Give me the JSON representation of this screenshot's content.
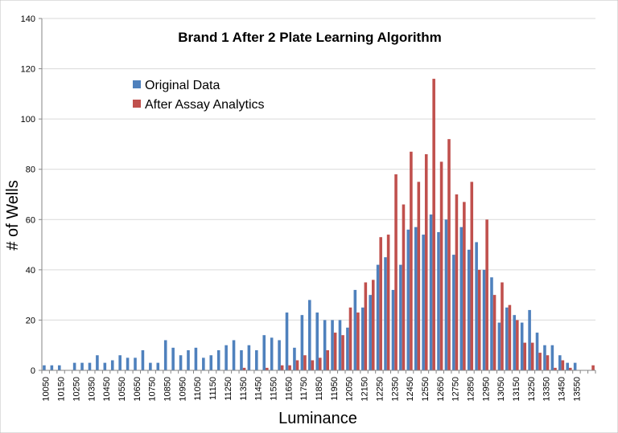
{
  "chart_data": {
    "type": "bar",
    "title": "Brand 1 After 2 Plate Learning Algorithm",
    "xlabel": "Luminance",
    "ylabel": "# of Wells",
    "ylim": [
      0,
      140
    ],
    "yticks": [
      0,
      20,
      40,
      60,
      80,
      100,
      120,
      140
    ],
    "grid": "horizontal",
    "legend_position": "upper-left",
    "colors": {
      "original": "#4F81BD",
      "after": "#C0504D"
    },
    "categories": [
      "10050",
      "10100",
      "10150",
      "10200",
      "10250",
      "10300",
      "10350",
      "10400",
      "10450",
      "10500",
      "10550",
      "10600",
      "10650",
      "10700",
      "10750",
      "10800",
      "10850",
      "10900",
      "10950",
      "11000",
      "11050",
      "11100",
      "11150",
      "11200",
      "11250",
      "11300",
      "11350",
      "11400",
      "11450",
      "11500",
      "11550",
      "11600",
      "11650",
      "11700",
      "11750",
      "11800",
      "11850",
      "11900",
      "11950",
      "12000",
      "12050",
      "12100",
      "12150",
      "12200",
      "12250",
      "12300",
      "12350",
      "12400",
      "12450",
      "12500",
      "12550",
      "12600",
      "12650",
      "12700",
      "12750",
      "12800",
      "12850",
      "12900",
      "12950",
      "13000",
      "13050",
      "13100",
      "13150",
      "13200",
      "13250",
      "13300",
      "13350",
      "13400",
      "13450",
      "13500",
      "13550",
      "13600",
      "13650"
    ],
    "tick_labels": [
      "10050",
      "",
      "10150",
      "",
      "10250",
      "",
      "10350",
      "",
      "10450",
      "",
      "10550",
      "",
      "10650",
      "",
      "10750",
      "",
      "10850",
      "",
      "10950",
      "",
      "11050",
      "",
      "11150",
      "",
      "11250",
      "",
      "11350",
      "",
      "11450",
      "",
      "11550",
      "",
      "11650",
      "",
      "11750",
      "",
      "11850",
      "",
      "11950",
      "",
      "12050",
      "",
      "12150",
      "",
      "12250",
      "",
      "12350",
      "",
      "12450",
      "",
      "12550",
      "",
      "12650",
      "",
      "12750",
      "",
      "12850",
      "",
      "12950",
      "",
      "13050",
      "",
      "13150",
      "",
      "13250",
      "",
      "13350",
      "",
      "13450",
      "",
      "13550",
      "",
      "",
      "",
      ""
    ],
    "series": [
      {
        "name": "Original Data",
        "values": [
          2,
          2,
          2,
          0,
          3,
          3,
          3,
          6,
          3,
          4,
          6,
          5,
          5,
          8,
          3,
          3,
          12,
          9,
          6,
          8,
          9,
          5,
          6,
          8,
          10,
          12,
          8,
          10,
          8,
          14,
          13,
          12,
          23,
          9,
          22,
          28,
          23,
          20,
          20,
          20,
          17,
          32,
          25,
          30,
          42,
          45,
          32,
          42,
          56,
          57,
          54,
          62,
          55,
          60,
          46,
          57,
          48,
          51,
          40,
          37,
          19,
          25,
          22,
          19,
          24,
          15,
          10,
          10,
          6,
          3,
          3,
          0,
          0
        ]
      },
      {
        "name": "After Assay Analytics",
        "values": [
          0,
          0,
          0,
          0,
          0,
          0,
          0,
          0,
          0,
          0,
          0,
          0,
          0,
          0,
          0,
          0,
          0,
          0,
          0,
          0,
          0,
          0,
          0,
          0,
          0,
          0,
          1,
          0,
          0,
          1,
          0,
          2,
          2,
          4,
          6,
          4,
          5,
          8,
          15,
          14,
          25,
          23,
          35,
          36,
          53,
          54,
          78,
          66,
          87,
          75,
          86,
          116,
          83,
          92,
          70,
          67,
          75,
          40,
          60,
          30,
          35,
          26,
          20,
          11,
          11,
          7,
          6,
          1,
          4,
          1,
          0,
          0,
          2
        ]
      }
    ]
  }
}
